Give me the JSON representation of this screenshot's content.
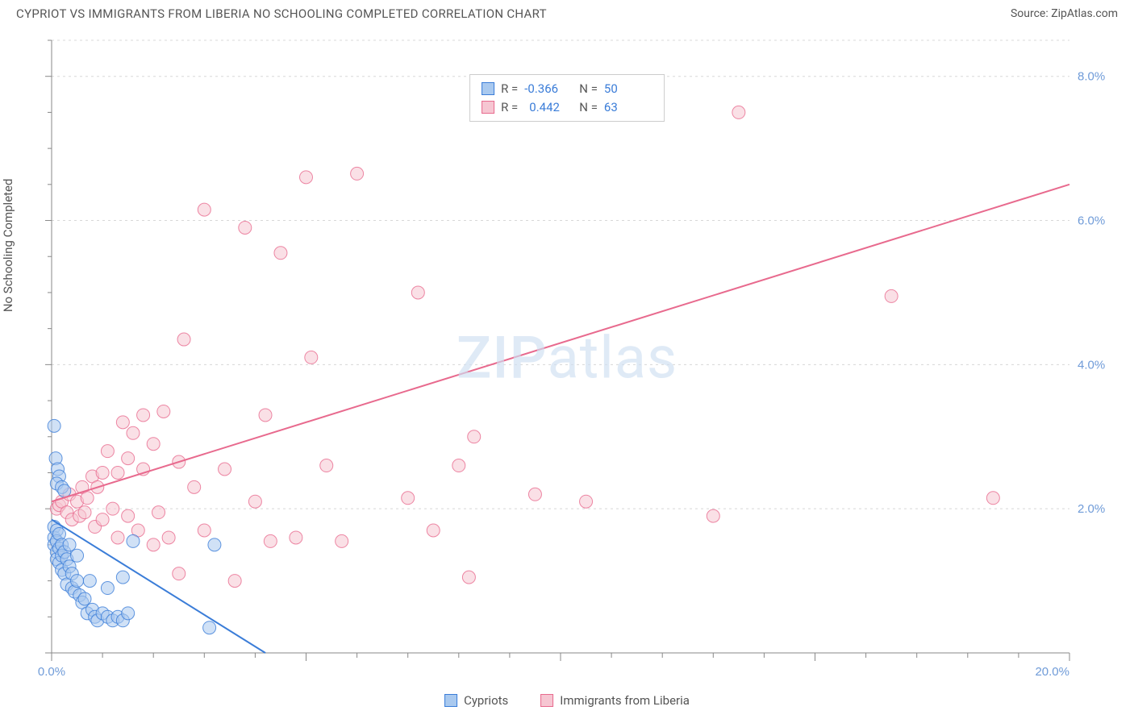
{
  "title": "CYPRIOT VS IMMIGRANTS FROM LIBERIA NO SCHOOLING COMPLETED CORRELATION CHART",
  "source_label": "Source: ZipAtlas.com",
  "ylabel": "No Schooling Completed",
  "watermark": "ZIPatlas",
  "chart": {
    "type": "scatter",
    "xlim": [
      0,
      20
    ],
    "ylim": [
      0,
      8.5
    ],
    "xtick_step": 5,
    "ytick_step": 2,
    "xtick_minor_step": 1,
    "grid_color": "#d8d8d8",
    "axis_color": "#888888",
    "tick_label_color": "#6f9bd8",
    "background_color": "#ffffff",
    "marker_radius": 8,
    "marker_opacity": 0.55,
    "line_width": 2,
    "x_labels": [
      "0.0%",
      "20.0%"
    ],
    "y_labels": [
      "2.0%",
      "4.0%",
      "6.0%",
      "8.0%"
    ],
    "series": [
      {
        "name": "Cypriots",
        "color_fill": "#a9c9ef",
        "color_stroke": "#3b7dd8",
        "R_label": "R =",
        "R": "-0.366",
        "N_label": "N =",
        "N": "50",
        "trend": {
          "x1": 0,
          "y1": 1.85,
          "x2": 4.2,
          "y2": 0.0
        },
        "points": [
          [
            0.05,
            1.75
          ],
          [
            0.05,
            1.6
          ],
          [
            0.05,
            1.5
          ],
          [
            0.1,
            1.7
          ],
          [
            0.1,
            1.55
          ],
          [
            0.1,
            1.4
          ],
          [
            0.1,
            1.3
          ],
          [
            0.15,
            1.65
          ],
          [
            0.15,
            1.45
          ],
          [
            0.15,
            1.25
          ],
          [
            0.2,
            1.5
          ],
          [
            0.2,
            1.35
          ],
          [
            0.2,
            1.15
          ],
          [
            0.25,
            1.4
          ],
          [
            0.25,
            1.1
          ],
          [
            0.3,
            1.3
          ],
          [
            0.3,
            0.95
          ],
          [
            0.35,
            1.5
          ],
          [
            0.35,
            1.2
          ],
          [
            0.4,
            1.1
          ],
          [
            0.4,
            0.9
          ],
          [
            0.45,
            0.85
          ],
          [
            0.5,
            1.35
          ],
          [
            0.5,
            1.0
          ],
          [
            0.55,
            0.8
          ],
          [
            0.6,
            0.7
          ],
          [
            0.65,
            0.75
          ],
          [
            0.7,
            0.55
          ],
          [
            0.75,
            1.0
          ],
          [
            0.8,
            0.6
          ],
          [
            0.85,
            0.5
          ],
          [
            0.9,
            0.45
          ],
          [
            1.0,
            0.55
          ],
          [
            1.1,
            0.9
          ],
          [
            1.1,
            0.5
          ],
          [
            1.2,
            0.45
          ],
          [
            1.3,
            0.5
          ],
          [
            1.4,
            1.05
          ],
          [
            1.4,
            0.45
          ],
          [
            1.5,
            0.55
          ],
          [
            1.6,
            1.55
          ],
          [
            0.05,
            3.15
          ],
          [
            0.08,
            2.7
          ],
          [
            0.12,
            2.55
          ],
          [
            0.15,
            2.45
          ],
          [
            0.1,
            2.35
          ],
          [
            0.2,
            2.3
          ],
          [
            0.25,
            2.25
          ],
          [
            3.2,
            1.5
          ],
          [
            3.1,
            0.35
          ]
        ]
      },
      {
        "name": "Immigrants from Liberia",
        "color_fill": "#f6c6d2",
        "color_stroke": "#e86a8e",
        "R_label": "R =",
        "R": "0.442",
        "N_label": "N =",
        "N": "63",
        "trend": {
          "x1": 0,
          "y1": 2.1,
          "x2": 20,
          "y2": 6.5
        },
        "points": [
          [
            0.1,
            2.0
          ],
          [
            0.15,
            2.05
          ],
          [
            0.2,
            2.1
          ],
          [
            0.3,
            1.95
          ],
          [
            0.35,
            2.2
          ],
          [
            0.4,
            1.85
          ],
          [
            0.5,
            2.1
          ],
          [
            0.55,
            1.9
          ],
          [
            0.6,
            2.3
          ],
          [
            0.65,
            1.95
          ],
          [
            0.7,
            2.15
          ],
          [
            0.8,
            2.45
          ],
          [
            0.85,
            1.75
          ],
          [
            0.9,
            2.3
          ],
          [
            1.0,
            2.5
          ],
          [
            1.0,
            1.85
          ],
          [
            1.1,
            2.8
          ],
          [
            1.2,
            2.0
          ],
          [
            1.3,
            1.6
          ],
          [
            1.3,
            2.5
          ],
          [
            1.4,
            3.2
          ],
          [
            1.5,
            2.7
          ],
          [
            1.5,
            1.9
          ],
          [
            1.6,
            3.05
          ],
          [
            1.7,
            1.7
          ],
          [
            1.8,
            2.55
          ],
          [
            1.8,
            3.3
          ],
          [
            2.0,
            1.5
          ],
          [
            2.0,
            2.9
          ],
          [
            2.1,
            1.95
          ],
          [
            2.2,
            3.35
          ],
          [
            2.3,
            1.6
          ],
          [
            2.5,
            2.65
          ],
          [
            2.5,
            1.1
          ],
          [
            2.6,
            4.35
          ],
          [
            2.8,
            2.3
          ],
          [
            3.0,
            6.15
          ],
          [
            3.0,
            1.7
          ],
          [
            3.4,
            2.55
          ],
          [
            3.6,
            1.0
          ],
          [
            3.8,
            5.9
          ],
          [
            4.0,
            2.1
          ],
          [
            4.2,
            3.3
          ],
          [
            4.3,
            1.55
          ],
          [
            4.5,
            5.55
          ],
          [
            4.8,
            1.6
          ],
          [
            5.0,
            6.6
          ],
          [
            5.1,
            4.1
          ],
          [
            5.4,
            2.6
          ],
          [
            5.7,
            1.55
          ],
          [
            6.0,
            6.65
          ],
          [
            7.0,
            2.15
          ],
          [
            7.2,
            5.0
          ],
          [
            7.5,
            1.7
          ],
          [
            8.0,
            2.6
          ],
          [
            8.2,
            1.05
          ],
          [
            8.3,
            3.0
          ],
          [
            9.5,
            2.2
          ],
          [
            10.5,
            2.1
          ],
          [
            13.0,
            1.9
          ],
          [
            13.5,
            7.5
          ],
          [
            16.5,
            4.95
          ],
          [
            18.5,
            2.15
          ]
        ]
      }
    ]
  },
  "legend": {
    "series1_label": "Cypriots",
    "series2_label": "Immigrants from Liberia"
  }
}
